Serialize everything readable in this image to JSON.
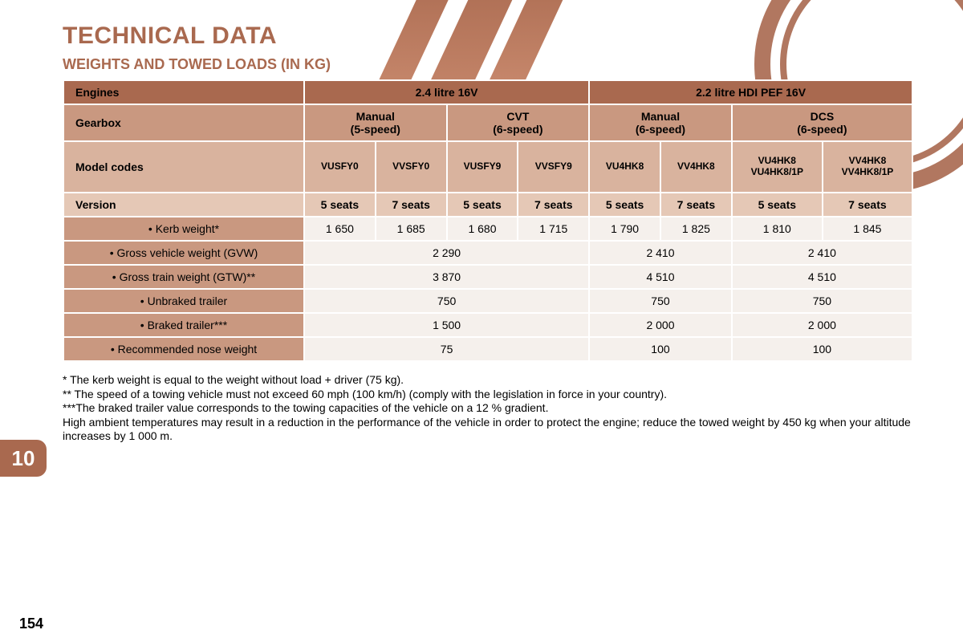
{
  "title": "TECHNICAL DATA",
  "subtitle": "WEIGHTS AND TOWED LOADS (IN KG)",
  "chapter": "10",
  "pageNumber": "154",
  "headers": {
    "engines": "Engines",
    "gearbox": "Gearbox",
    "modelCodes": "Model codes",
    "version": "Version"
  },
  "engines": [
    "2.4 litre 16V",
    "2.2 litre HDI PEF 16V"
  ],
  "gearboxes": [
    {
      "name": "Manual",
      "speed": "(5-speed)"
    },
    {
      "name": "CVT",
      "speed": "(6-speed)"
    },
    {
      "name": "Manual",
      "speed": "(6-speed)"
    },
    {
      "name": "DCS",
      "speed": "(6-speed)"
    }
  ],
  "modelCodes": [
    "VUSFY0",
    "VVSFY0",
    "VUSFY9",
    "VVSFY9",
    "VU4HK8",
    "VV4HK8",
    "VU4HK8 VU4HK8/1P",
    "VV4HK8 VV4HK8/1P"
  ],
  "versions": [
    "5 seats",
    "7 seats",
    "5 seats",
    "7 seats",
    "5 seats",
    "7 seats",
    "5 seats",
    "7 seats"
  ],
  "rows": [
    {
      "label": "• Kerb weight*",
      "cells": [
        "1 650",
        "1 685",
        "1 680",
        "1 715",
        "1 790",
        "1 825",
        "1 810",
        "1 845"
      ],
      "span": 1
    },
    {
      "label": "• Gross vehicle weight (GVW)",
      "cells": [
        "2 290",
        "2 410",
        "2 410"
      ],
      "span": "group"
    },
    {
      "label": "• Gross train weight (GTW)**",
      "cells": [
        "3 870",
        "4 510",
        "4 510"
      ],
      "span": "group"
    },
    {
      "label": "• Unbraked trailer",
      "cells": [
        "750",
        "750",
        "750"
      ],
      "span": "group"
    },
    {
      "label": "• Braked trailer***",
      "cells": [
        "1 500",
        "2 000",
        "2 000"
      ],
      "span": "group"
    },
    {
      "label": "• Recommended nose weight",
      "cells": [
        "75",
        "100",
        "100"
      ],
      "span": "group"
    }
  ],
  "footnotes": [
    "* The kerb weight is equal to the weight without load + driver (75 kg).",
    "** The speed of a towing vehicle must not exceed 60 mph (100 km/h) (comply with the legislation in force in your country).",
    "***The braked trailer value corresponds to the towing capacities of the vehicle on a 12 % gradient.",
    "High ambient temperatures may result in a reduction in the performance of the vehicle in order to protect the engine; reduce the towed weight by 450 kg when your altitude increases by 1 000 m."
  ],
  "colors": {
    "accent": "#a9694f",
    "header_med": "#c99880",
    "header_light": "#d9b39e",
    "header_lighter": "#e5c8b6",
    "data_bg": "#f5f0ec"
  }
}
